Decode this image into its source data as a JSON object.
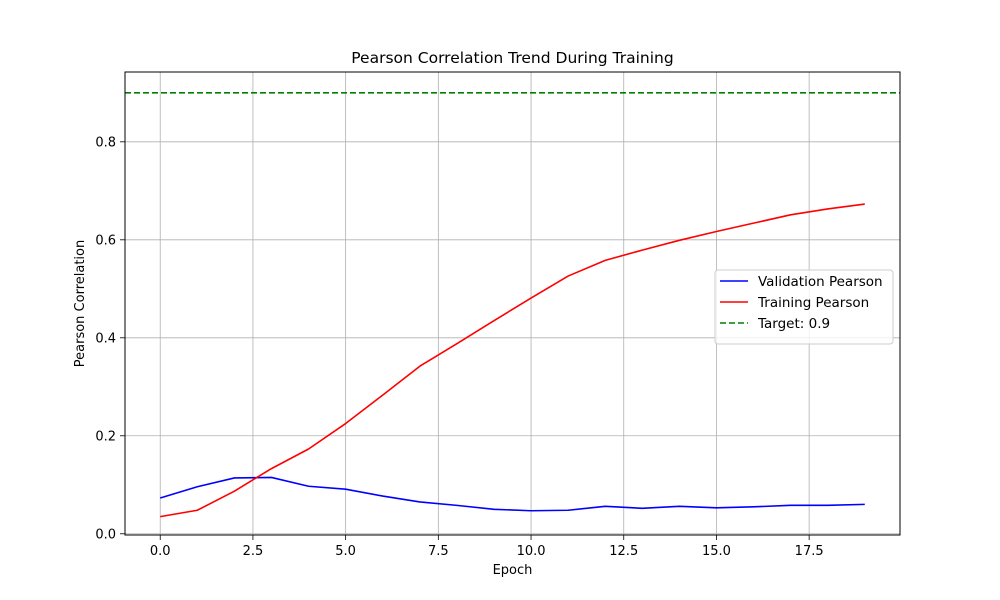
{
  "chart_data": {
    "type": "line",
    "title": "Pearson Correlation Trend During Training",
    "xlabel": "Epoch",
    "ylabel": "Pearson Correlation",
    "x": [
      0,
      1,
      2,
      3,
      4,
      5,
      6,
      7,
      8,
      9,
      10,
      11,
      12,
      13,
      14,
      15,
      16,
      17,
      18,
      19
    ],
    "xlim": [
      -0.95,
      19.95
    ],
    "ylim": [
      -0.0025,
      0.9425
    ],
    "xticks": [
      0.0,
      2.5,
      5.0,
      7.5,
      10.0,
      12.5,
      15.0,
      17.5
    ],
    "xtick_labels": [
      "0.0",
      "2.5",
      "5.0",
      "7.5",
      "10.0",
      "12.5",
      "15.0",
      "17.5"
    ],
    "yticks": [
      0.0,
      0.2,
      0.4,
      0.6,
      0.8
    ],
    "ytick_labels": [
      "0.0",
      "0.2",
      "0.4",
      "0.6",
      "0.8"
    ],
    "grid": true,
    "legend_position": "center-right",
    "series": [
      {
        "name": "Validation Pearson",
        "color": "#0000ff",
        "style": "solid",
        "values": [
          0.073,
          0.096,
          0.114,
          0.115,
          0.097,
          0.091,
          0.077,
          0.065,
          0.058,
          0.05,
          0.047,
          0.048,
          0.056,
          0.052,
          0.056,
          0.053,
          0.055,
          0.058,
          0.058,
          0.06
        ]
      },
      {
        "name": "Training Pearson",
        "color": "#ff0000",
        "style": "solid",
        "values": [
          0.035,
          0.048,
          0.087,
          0.133,
          0.173,
          0.225,
          0.283,
          0.342,
          0.388,
          0.435,
          0.481,
          0.526,
          0.558,
          0.579,
          0.599,
          0.617,
          0.634,
          0.651,
          0.663,
          0.673
        ]
      }
    ],
    "reference_lines": [
      {
        "name": "Target: 0.9",
        "y": 0.9,
        "color": "#008000",
        "style": "dashed"
      }
    ]
  }
}
